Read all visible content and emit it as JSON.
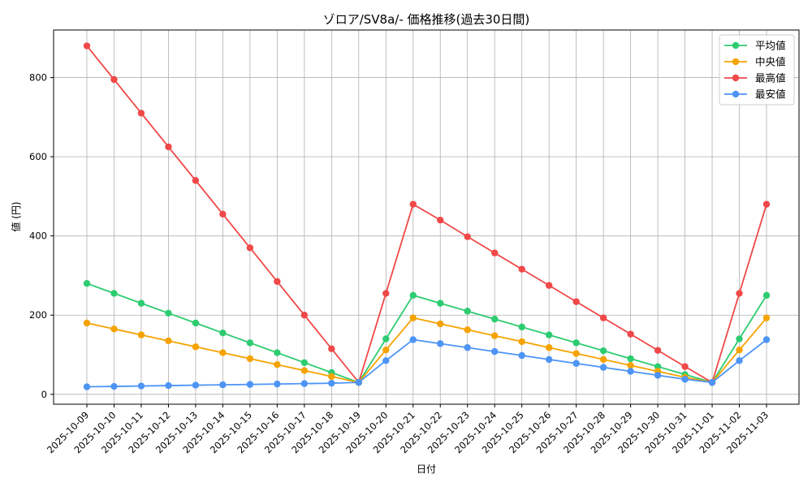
{
  "chart_data": {
    "type": "line",
    "title": "ゾロア/SV8a/- 価格推移(過去30日間)",
    "xlabel": "日付",
    "ylabel": "値 (円)",
    "ylim": [
      -25,
      920
    ],
    "yticks": [
      0,
      200,
      400,
      600,
      800
    ],
    "grid": true,
    "legend_position": "top-right",
    "categories": [
      "2025-10-09",
      "2025-10-10",
      "2025-10-11",
      "2025-10-12",
      "2025-10-13",
      "2025-10-14",
      "2025-10-15",
      "2025-10-16",
      "2025-10-17",
      "2025-10-18",
      "2025-10-19",
      "2025-10-20",
      "2025-10-21",
      "2025-10-22",
      "2025-10-23",
      "2025-10-24",
      "2025-10-25",
      "2025-10-26",
      "2025-10-27",
      "2025-10-28",
      "2025-10-29",
      "2025-10-30",
      "2025-10-31",
      "2025-11-01",
      "2025-11-02",
      "2025-11-03"
    ],
    "series": [
      {
        "name": "平均値",
        "color": "#2ecc71",
        "values": [
          280,
          255,
          230,
          205,
          180,
          155,
          130,
          105,
          80,
          55,
          30,
          140,
          250,
          230,
          210,
          190,
          170,
          150,
          130,
          110,
          90,
          70,
          50,
          30,
          140,
          250
        ]
      },
      {
        "name": "中央値",
        "color": "#f5a300",
        "values": [
          180,
          165,
          150,
          135,
          120,
          105,
          90,
          75,
          60,
          45,
          30,
          112,
          193,
          178,
          163,
          148,
          133,
          118,
          103,
          88,
          73,
          58,
          43,
          30,
          112,
          193
        ]
      },
      {
        "name": "最高値",
        "color": "#f04848",
        "values": [
          880,
          795,
          710,
          625,
          540,
          455,
          370,
          285,
          200,
          115,
          30,
          255,
          480,
          440,
          398,
          357,
          316,
          275,
          234,
          193,
          152,
          111,
          70,
          30,
          255,
          480
        ]
      },
      {
        "name": "最安値",
        "color": "#4d94f5",
        "values": [
          19,
          20,
          21,
          22,
          23,
          24,
          25,
          26,
          27,
          28,
          30,
          85,
          138,
          128,
          118,
          108,
          98,
          88,
          78,
          68,
          58,
          48,
          38,
          30,
          85,
          138
        ]
      }
    ]
  }
}
